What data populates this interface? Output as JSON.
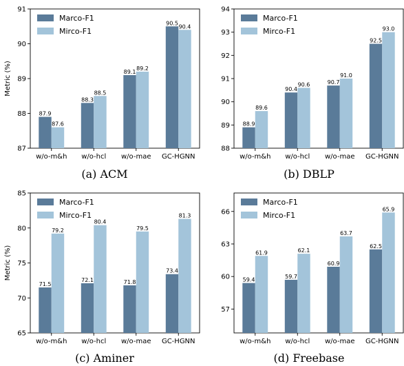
{
  "colors": {
    "marco": "#5a7b99",
    "mirco": "#a3c4da"
  },
  "legend": {
    "series_a": "Marco-F1",
    "series_b": "Mirco-F1"
  },
  "chart_data": [
    {
      "type": "bar",
      "caption": "(a) ACM",
      "categories": [
        "w/o-m&h",
        "w/o-hcl",
        "w/o-mae",
        "GC-HGNN"
      ],
      "series": [
        {
          "name": "Marco-F1",
          "values": [
            87.9,
            88.3,
            89.1,
            90.5
          ],
          "labels": [
            "87.9",
            "88.3",
            "89.1",
            "90.5"
          ]
        },
        {
          "name": "Mirco-F1",
          "values": [
            87.6,
            88.5,
            89.2,
            90.4
          ],
          "labels": [
            "87.6",
            "88.5",
            "89.2",
            "90.4"
          ]
        }
      ],
      "ylabel": "Metric (%)",
      "ylim": [
        87,
        91
      ],
      "yticks": [
        87,
        88,
        89,
        90,
        91
      ],
      "ytick_labels": [
        "87",
        "88",
        "89",
        "90",
        "91"
      ],
      "legend_position": "top-left",
      "grid": false
    },
    {
      "type": "bar",
      "caption": "(b) DBLP",
      "categories": [
        "w/o-m&h",
        "w/o-hcl",
        "w/o-mae",
        "GC-HGNN"
      ],
      "series": [
        {
          "name": "Marco-F1",
          "values": [
            88.9,
            90.4,
            90.7,
            92.5
          ],
          "labels": [
            "88.9",
            "90.4",
            "90.7",
            "92.5"
          ]
        },
        {
          "name": "Mirco-F1",
          "values": [
            89.6,
            90.6,
            91.0,
            93.0
          ],
          "labels": [
            "89.6",
            "90.6",
            "91.0",
            "93.0"
          ]
        }
      ],
      "ylabel": "",
      "ylim": [
        88,
        94
      ],
      "yticks": [
        88,
        89,
        90,
        91,
        92,
        93,
        94
      ],
      "ytick_labels": [
        "88",
        "89",
        "90",
        "91",
        "92",
        "93",
        "94"
      ],
      "legend_position": "top-left",
      "grid": false
    },
    {
      "type": "bar",
      "caption": "(c) Aminer",
      "categories": [
        "w/o-m&h",
        "w/o-hcl",
        "w/o-mae",
        "GC-HGNN"
      ],
      "series": [
        {
          "name": "Marco-F1",
          "values": [
            71.5,
            72.1,
            71.8,
            73.4
          ],
          "labels": [
            "71.5",
            "72.1",
            "71.8",
            "73.4"
          ]
        },
        {
          "name": "Mirco-F1",
          "values": [
            79.2,
            80.4,
            79.5,
            81.3
          ],
          "labels": [
            "79.2",
            "80.4",
            "79.5",
            "81.3"
          ]
        }
      ],
      "ylabel": "Metric (%)",
      "ylim": [
        65,
        85
      ],
      "yticks": [
        65,
        70,
        75,
        80,
        85
      ],
      "ytick_labels": [
        "65",
        "70",
        "75",
        "80",
        "85"
      ],
      "legend_position": "top-left",
      "grid": false
    },
    {
      "type": "bar",
      "caption": "(d) Freebase",
      "categories": [
        "w/o-m&h",
        "w/o-hcl",
        "w/o-mae",
        "GC-HGNN"
      ],
      "series": [
        {
          "name": "Marco-F1",
          "values": [
            59.4,
            59.7,
            60.9,
            62.5
          ],
          "labels": [
            "59.4",
            "59.7",
            "60.9",
            "62.5"
          ]
        },
        {
          "name": "Mirco-F1",
          "values": [
            61.9,
            62.1,
            63.7,
            65.9
          ],
          "labels": [
            "61.9",
            "62.1",
            "63.7",
            "65.9"
          ]
        }
      ],
      "ylabel": "",
      "ylim": [
        54.8,
        67.7
      ],
      "yticks": [
        57,
        60,
        63,
        66
      ],
      "ytick_labels": [
        "57",
        "60",
        "63",
        "66"
      ],
      "legend_position": "top-left",
      "grid": false
    }
  ]
}
